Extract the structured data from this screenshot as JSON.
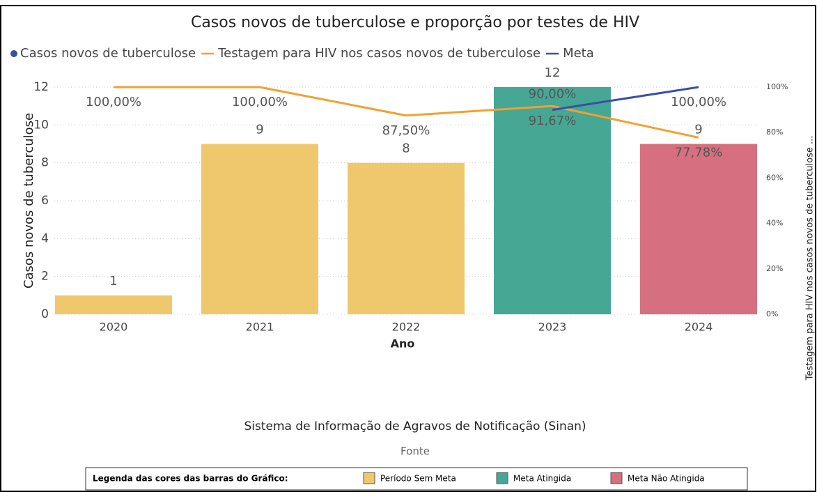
{
  "chart_data": {
    "type": "bar",
    "title": "Casos novos de tuberculose e proporção por testes de HIV",
    "x_label": "Ano",
    "y_label": "Casos novos de tuberculose",
    "y2_label": "Testagem para HIV nos casos novos de tuberculose ...",
    "categories": [
      "2020",
      "2021",
      "2022",
      "2023",
      "2024"
    ],
    "series": [
      {
        "name": "Casos novos de tuberculose",
        "type": "bar",
        "color": "#3b4ea8",
        "colors": [
          "#efc86e",
          "#efc86e",
          "#efc86e",
          "#46a794",
          "#d66f7f"
        ],
        "values": [
          1,
          9,
          8,
          12,
          9
        ]
      },
      {
        "name": "Testagem para HIV nos casos novos de tuberculose",
        "type": "line",
        "axis": "y2",
        "color": "#f4a030",
        "values": [
          100,
          100,
          87.5,
          91.67,
          77.78
        ],
        "value_labels": [
          "100,00%",
          "100,00%",
          "87,50%",
          "91,67%",
          "77,78%"
        ]
      },
      {
        "name": "Meta",
        "type": "line",
        "axis": "y2",
        "color": "#3b4ea8",
        "values": [
          null,
          null,
          null,
          90,
          100
        ],
        "value_labels": [
          null,
          null,
          null,
          "90,00%",
          "100,00%"
        ]
      }
    ],
    "ylim": [
      0,
      12
    ],
    "yticks": [
      0,
      2,
      4,
      6,
      8,
      10,
      12
    ],
    "y2lim": [
      0,
      100
    ],
    "y2ticks": [
      {
        "value": 0,
        "label": "0%"
      },
      {
        "value": 20,
        "label": "20%"
      },
      {
        "value": 40,
        "label": "40%"
      },
      {
        "value": 60,
        "label": "60%"
      },
      {
        "value": 80,
        "label": "80%"
      },
      {
        "value": 100,
        "label": "100%"
      }
    ],
    "grid": true,
    "source": "Sistema de Informação de Agravos de Notificação (Sinan)",
    "source_label": "Fonte",
    "color_key": {
      "title": "Legenda das cores das barras do Gráfico:",
      "items": [
        {
          "label": "Período Sem Meta",
          "color": "#efc86e"
        },
        {
          "label": "Meta Atingida",
          "color": "#46a794"
        },
        {
          "label": "Meta Não Atingida",
          "color": "#d66f7f"
        }
      ]
    }
  }
}
